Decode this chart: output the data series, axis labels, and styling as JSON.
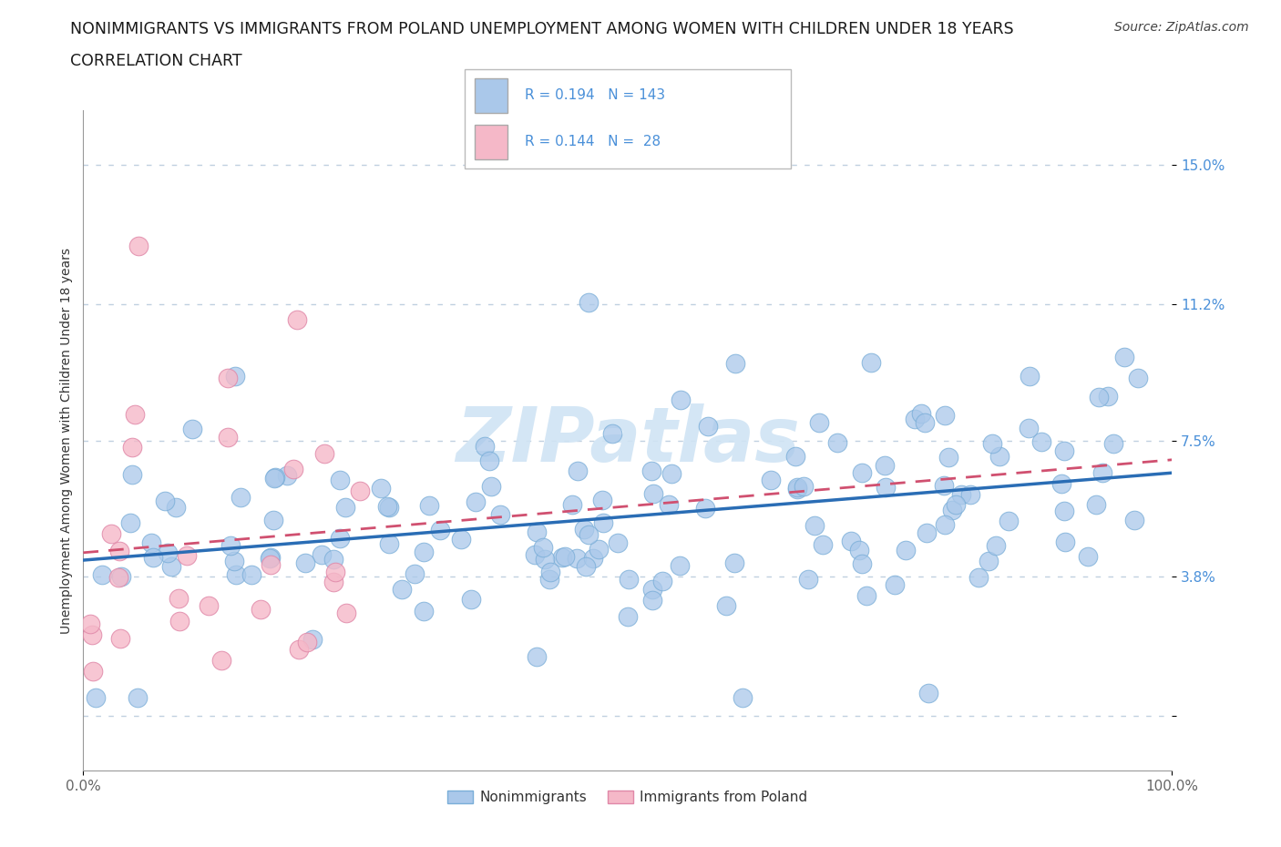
{
  "title_line1": "NONIMMIGRANTS VS IMMIGRANTS FROM POLAND UNEMPLOYMENT AMONG WOMEN WITH CHILDREN UNDER 18 YEARS",
  "title_line2": "CORRELATION CHART",
  "source": "Source: ZipAtlas.com",
  "ylabel": "Unemployment Among Women with Children Under 18 years",
  "xlim": [
    0.0,
    100.0
  ],
  "ylim": [
    -1.5,
    16.5
  ],
  "yticks_vals": [
    0.0,
    3.8,
    7.5,
    11.2,
    15.0
  ],
  "ytick_labels": [
    "",
    "3.8%",
    "7.5%",
    "11.2%",
    "15.0%"
  ],
  "nonimm_color": "#aac8ea",
  "nonimm_edge": "#7aaed8",
  "immig_color": "#f5b8c8",
  "immig_edge": "#e088a8",
  "trend_nonimm_color": "#2a6db5",
  "trend_immig_color": "#d05070",
  "R_nonimm": 0.194,
  "N_nonimm": 143,
  "R_immig": 0.144,
  "N_immig": 28,
  "legend_label_nonimm": "Nonimmigrants",
  "legend_label_immig": "Immigrants from Poland",
  "watermark_text": "ZIPatlas",
  "watermark_color": "#d0e4f4",
  "grid_color": "#c0d0e0",
  "background_color": "#ffffff",
  "title_fontsize": 12.5,
  "subtitle_fontsize": 12.5,
  "axis_label_fontsize": 10,
  "tick_fontsize": 11,
  "legend_fontsize": 11,
  "source_fontsize": 10
}
